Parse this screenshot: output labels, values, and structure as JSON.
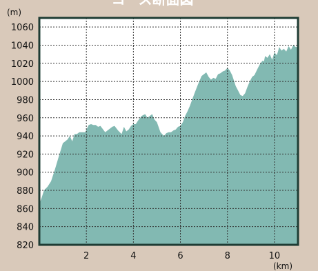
{
  "chart_data": {
    "type": "area",
    "title": "コース断面図",
    "xlabel": "(km)",
    "ylabel": "(m)",
    "xlim": [
      0,
      11
    ],
    "ylim": [
      820,
      1070
    ],
    "x_ticks": [
      2,
      4,
      6,
      8,
      10
    ],
    "y_ticks": [
      820,
      840,
      860,
      880,
      900,
      920,
      940,
      960,
      980,
      1000,
      1020,
      1040,
      1060
    ],
    "grid": true,
    "colors": {
      "fill": "#82b9b2",
      "axis": "#1e3c34",
      "background": "#ffffff",
      "page": "#d9c9ba"
    },
    "series": [
      {
        "x": [
          0.0,
          0.1,
          0.2,
          0.35,
          0.5,
          0.65,
          0.8,
          1.0,
          1.1,
          1.2,
          1.3,
          1.4,
          1.5,
          1.6,
          1.7,
          1.8,
          1.95,
          2.1,
          2.2,
          2.3,
          2.4,
          2.5,
          2.6,
          2.8,
          2.95,
          3.1,
          3.2,
          3.35,
          3.5,
          3.6,
          3.7,
          3.8,
          3.9,
          4.0,
          4.1,
          4.2,
          4.35,
          4.5,
          4.6,
          4.7,
          4.8,
          4.9,
          5.0,
          5.15,
          5.3,
          5.4,
          5.5,
          5.6,
          5.7,
          5.8,
          5.9,
          6.0,
          6.1,
          6.2,
          6.3,
          6.4,
          6.5,
          6.6,
          6.75,
          6.9,
          7.0,
          7.1,
          7.2,
          7.3,
          7.4,
          7.5,
          7.6,
          7.7,
          7.8,
          7.9,
          8.0,
          8.1,
          8.2,
          8.3,
          8.35,
          8.45,
          8.55,
          8.65,
          8.75,
          8.85,
          8.95,
          9.05,
          9.15,
          9.3,
          9.4,
          9.5,
          9.55,
          9.6,
          9.7,
          9.8,
          9.9,
          10.0,
          10.1,
          10.15,
          10.2,
          10.3,
          10.4,
          10.5,
          10.6,
          10.7,
          10.8,
          10.9
        ],
        "values": [
          865,
          872,
          880,
          884,
          890,
          902,
          915,
          932,
          934,
          936,
          940,
          934,
          942,
          942,
          944,
          944,
          944,
          952,
          953,
          952,
          952,
          950,
          951,
          944,
          947,
          950,
          951,
          946,
          942,
          950,
          945,
          947,
          951,
          953,
          953,
          957,
          962,
          964,
          960,
          962,
          964,
          958,
          955,
          944,
          940,
          943,
          944,
          944,
          946,
          947,
          950,
          951,
          955,
          962,
          967,
          973,
          980,
          987,
          997,
          1006,
          1008,
          1010,
          1005,
          1002,
          1004,
          1003,
          1008,
          1009,
          1011,
          1012,
          1015,
          1012,
          1007,
          999,
          995,
          990,
          985,
          984,
          987,
          994,
          1000,
          1005,
          1007,
          1015,
          1020,
          1023,
          1022,
          1028,
          1026,
          1030,
          1024,
          1032,
          1029,
          1033,
          1038,
          1034,
          1036,
          1033,
          1039,
          1035,
          1040,
          1038
        ]
      }
    ]
  }
}
